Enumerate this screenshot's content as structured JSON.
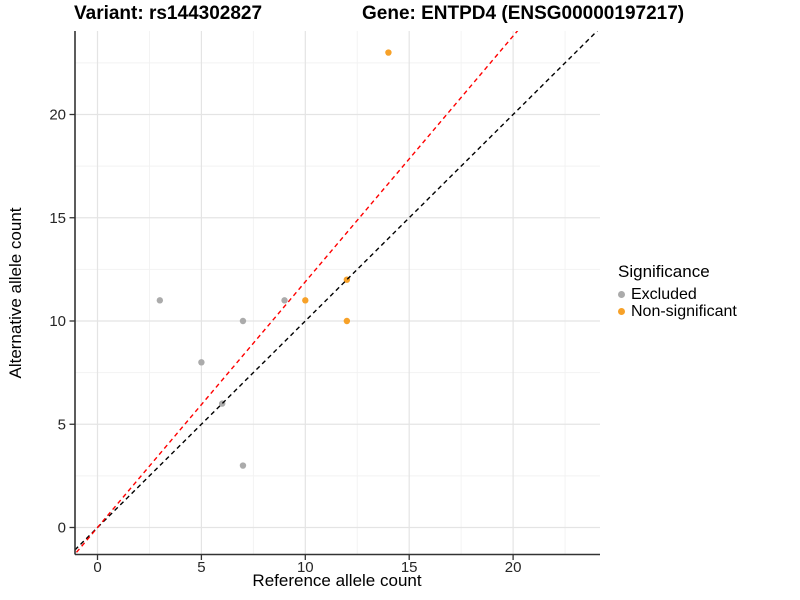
{
  "title": {
    "variant": "Variant: rs144302827",
    "gene": "Gene: ENTPD4 (ENSG00000197217)"
  },
  "chart_data": {
    "type": "scatter",
    "xlabel": "Reference allele count",
    "ylabel": "Alternative allele count",
    "x_ticks": [
      0,
      5,
      10,
      15,
      20
    ],
    "y_ticks": [
      0,
      5,
      10,
      15,
      20
    ],
    "x_minor_ticks": [
      2.5,
      7.5,
      12.5,
      17.5,
      22.5
    ],
    "y_minor_ticks": [
      2.5,
      7.5,
      12.5,
      17.5,
      22.5
    ],
    "xlim": [
      -1.15,
      24.2
    ],
    "ylim": [
      -1.3,
      24.05
    ],
    "grid": true,
    "legend_position": "right",
    "legend_title": "Significance",
    "series": [
      {
        "name": "Excluded",
        "color": "#ABABAB",
        "points": [
          [
            3,
            11
          ],
          [
            5,
            8
          ],
          [
            6,
            6
          ],
          [
            7,
            3
          ],
          [
            7,
            10
          ],
          [
            9,
            11
          ]
        ]
      },
      {
        "name": "Non-significant",
        "color": "#F7A128",
        "points": [
          [
            10,
            11
          ],
          [
            12,
            10
          ],
          [
            12,
            12
          ],
          [
            14,
            23
          ]
        ]
      }
    ],
    "lines": [
      {
        "name": "identity-line",
        "color": "#000000",
        "style": "dashed",
        "slope": 1.0,
        "intercept": 0
      },
      {
        "name": "fitted-ratio-line",
        "color": "#FF0000",
        "style": "dashed",
        "slope": 1.19,
        "intercept": 0
      }
    ],
    "colors": {
      "axis_line": "#333333",
      "major_grid": "#e4e4e4",
      "minor_grid": "#f2f2f2",
      "tick_text": "#262626"
    }
  }
}
